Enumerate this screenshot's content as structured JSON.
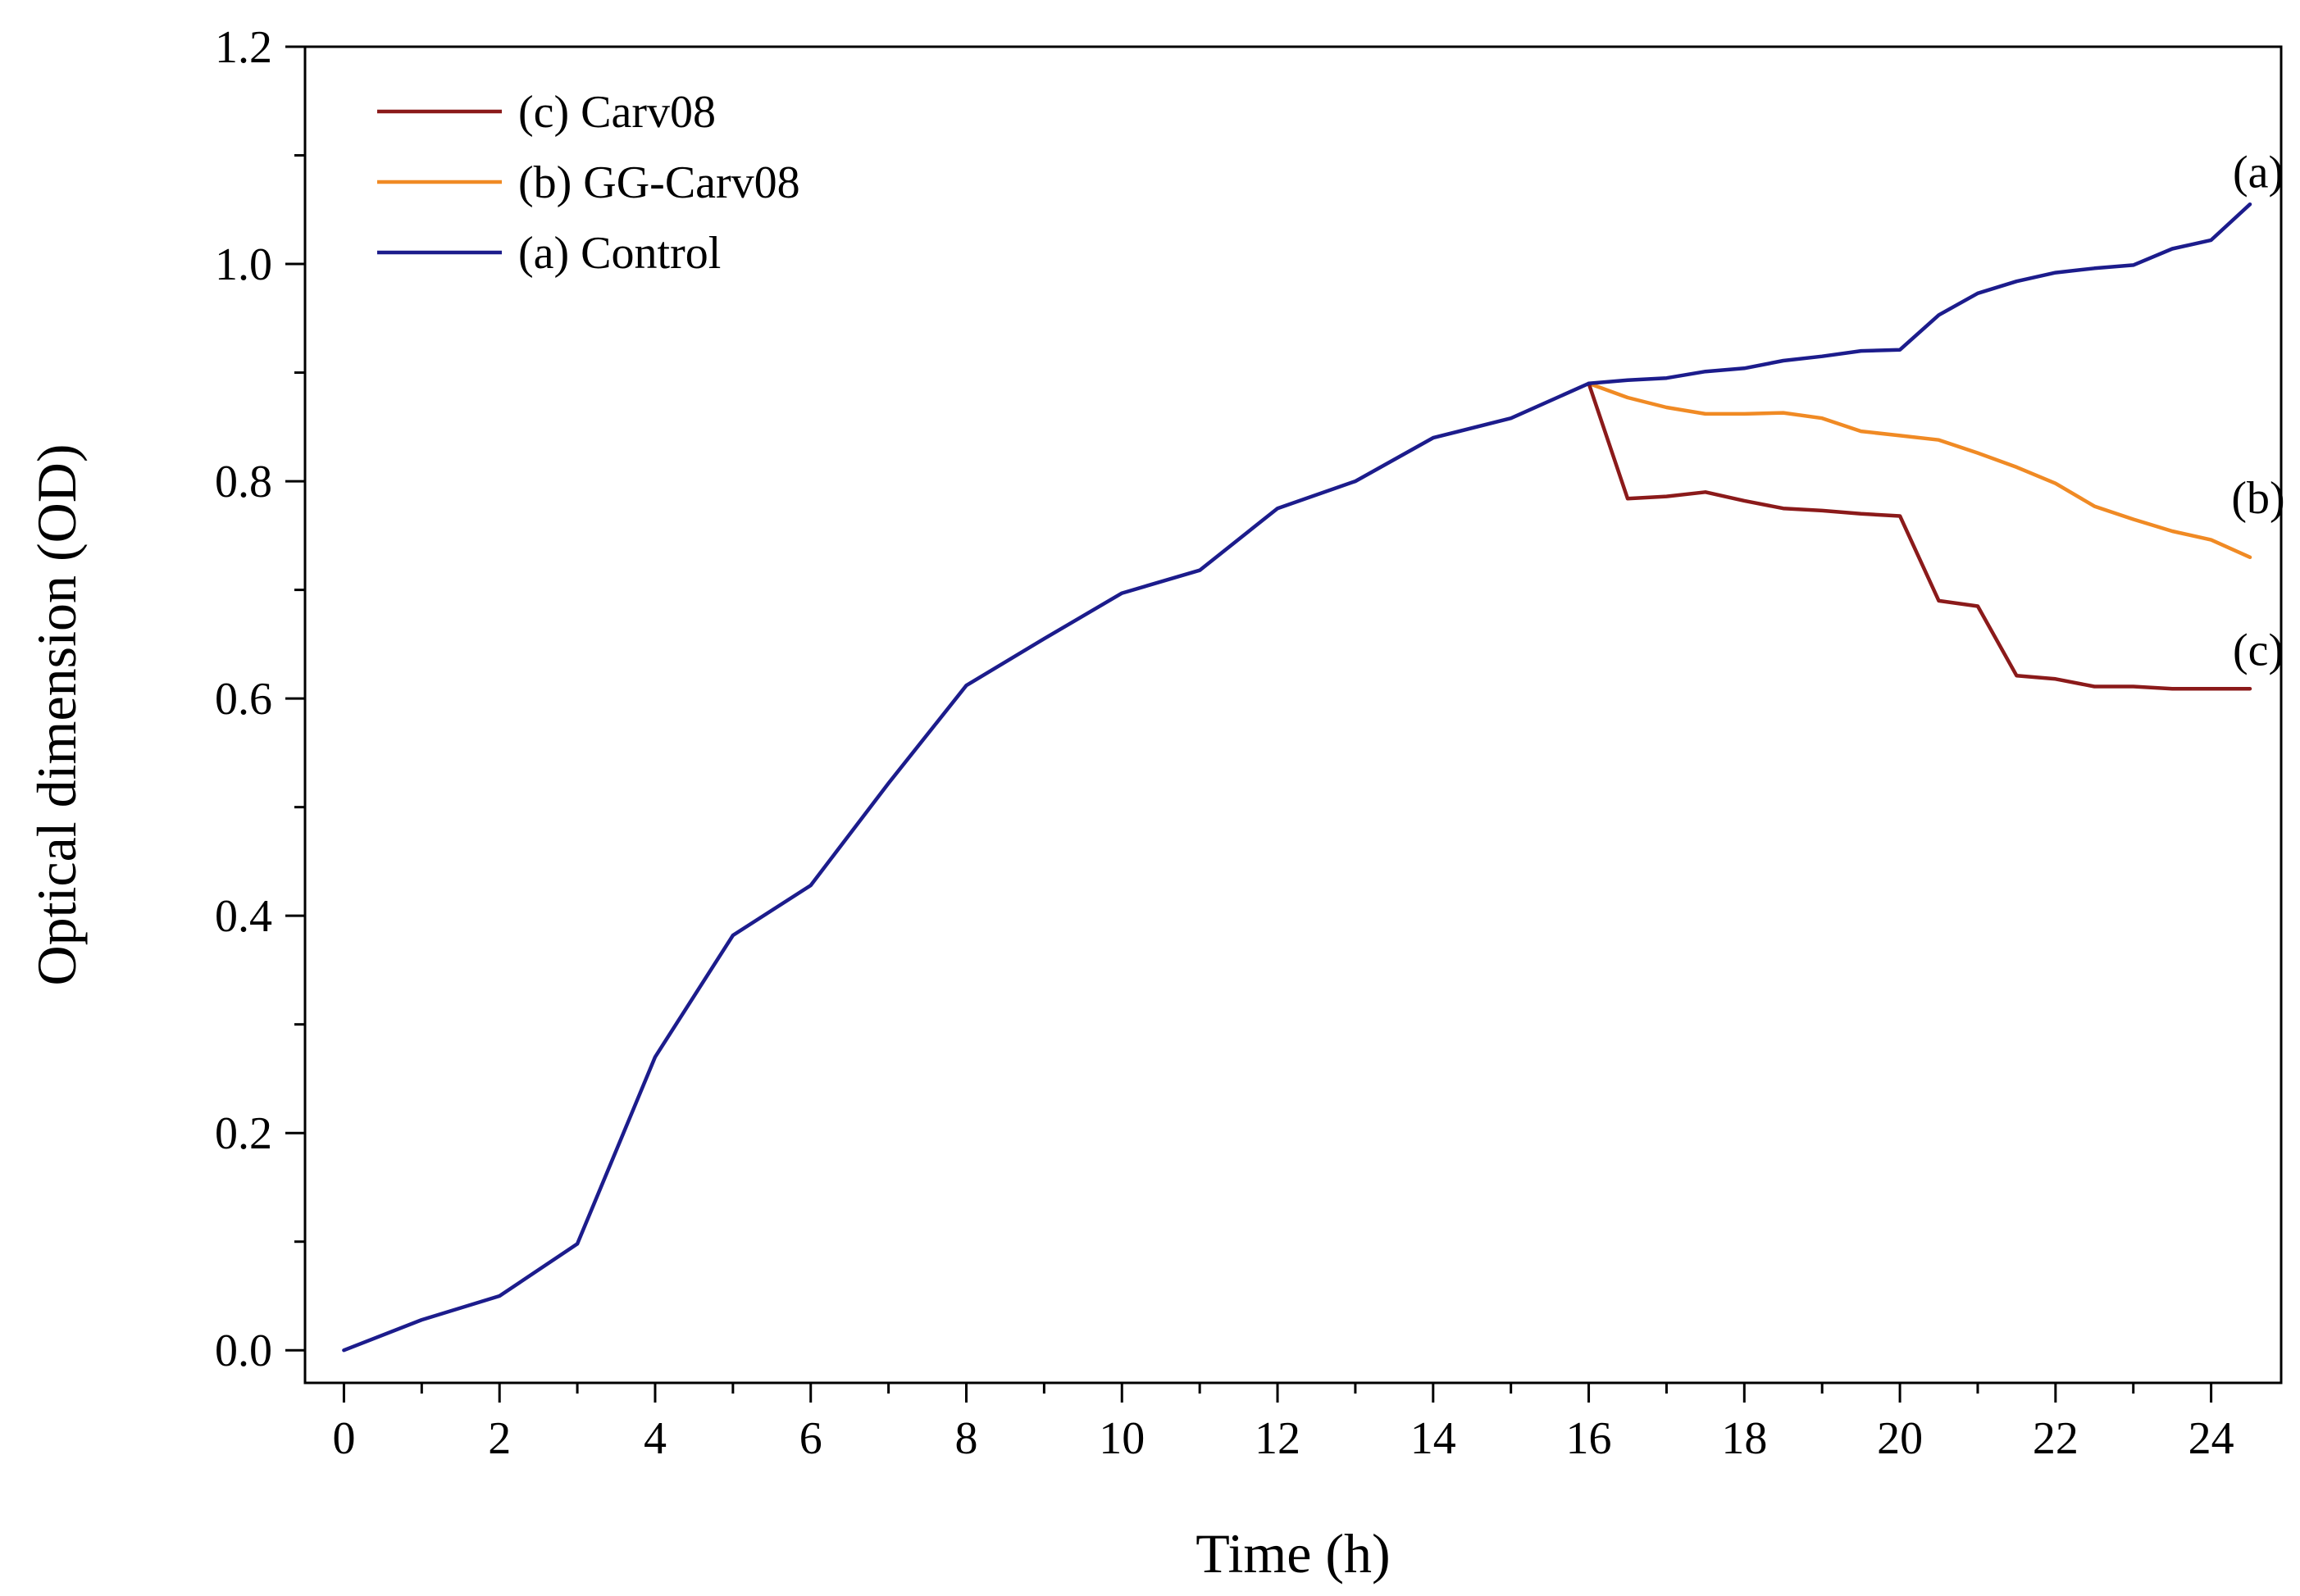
{
  "chart_data": {
    "type": "line",
    "title": "",
    "xlabel": "Time (h)",
    "ylabel": "Optical dimension (OD)",
    "xlim": [
      -0.5,
      24.9
    ],
    "ylim": [
      -0.03,
      1.2
    ],
    "xticks": [
      0,
      2,
      4,
      6,
      8,
      10,
      12,
      14,
      16,
      18,
      20,
      22,
      24
    ],
    "xtick_labels": [
      "0",
      "2",
      "4",
      "6",
      "8",
      "10",
      "12",
      "14",
      "16",
      "18",
      "20",
      "22",
      "24"
    ],
    "yticks": [
      0.0,
      0.2,
      0.4,
      0.6,
      0.8,
      1.0,
      1.2
    ],
    "ytick_labels": [
      "0.0",
      "0.2",
      "0.4",
      "0.6",
      "0.8",
      "1.0",
      "1.2"
    ],
    "legend_position": "top-left",
    "grid": false,
    "series": [
      {
        "name": "(c) Carv08",
        "color": "#8b1a1a",
        "x": [
          16,
          16.5,
          17,
          17.5,
          18,
          18.5,
          19,
          19.5,
          20,
          20.5,
          21,
          21.5,
          22,
          22.5,
          23,
          23.5,
          24,
          24.5
        ],
        "y": [
          0.89,
          0.784,
          0.786,
          0.79,
          0.782,
          0.775,
          0.773,
          0.77,
          0.768,
          0.69,
          0.685,
          0.621,
          0.618,
          0.611,
          0.611,
          0.609,
          0.609,
          0.609
        ]
      },
      {
        "name": "(b) GG-Carv08",
        "color": "#f08a24",
        "x": [
          16,
          16.5,
          17,
          17.5,
          18,
          18.5,
          19,
          19.5,
          20,
          20.5,
          21,
          21.5,
          22,
          22.5,
          23,
          23.5,
          24,
          24.5
        ],
        "y": [
          0.89,
          0.877,
          0.868,
          0.862,
          0.862,
          0.863,
          0.858,
          0.846,
          0.842,
          0.838,
          0.826,
          0.813,
          0.798,
          0.777,
          0.765,
          0.754,
          0.746,
          0.73
        ]
      },
      {
        "name": "(a) Control",
        "color": "#1c1c8c",
        "x": [
          0,
          1,
          2,
          3,
          4,
          5,
          6,
          7,
          8,
          9,
          10,
          11,
          12,
          13,
          14,
          15,
          16,
          16.5,
          17,
          17.5,
          18,
          18.5,
          19,
          19.5,
          20,
          20.5,
          21,
          21.5,
          22,
          22.5,
          23,
          23.5,
          24,
          24.5
        ],
        "y": [
          0.0,
          0.028,
          0.05,
          0.098,
          0.27,
          0.382,
          0.428,
          0.522,
          0.612,
          0.655,
          0.697,
          0.718,
          0.775,
          0.8,
          0.84,
          0.858,
          0.89,
          0.893,
          0.895,
          0.901,
          0.904,
          0.911,
          0.915,
          0.92,
          0.921,
          0.953,
          0.973,
          0.984,
          0.992,
          0.996,
          0.999,
          1.014,
          1.022,
          1.055
        ]
      }
    ],
    "annotations": [
      {
        "text": "(a)",
        "x": 24.5,
        "y": 1.085
      },
      {
        "text": "(b)",
        "x": 24.5,
        "y": 0.785
      },
      {
        "text": "(c)",
        "x": 24.5,
        "y": 0.645
      }
    ]
  }
}
